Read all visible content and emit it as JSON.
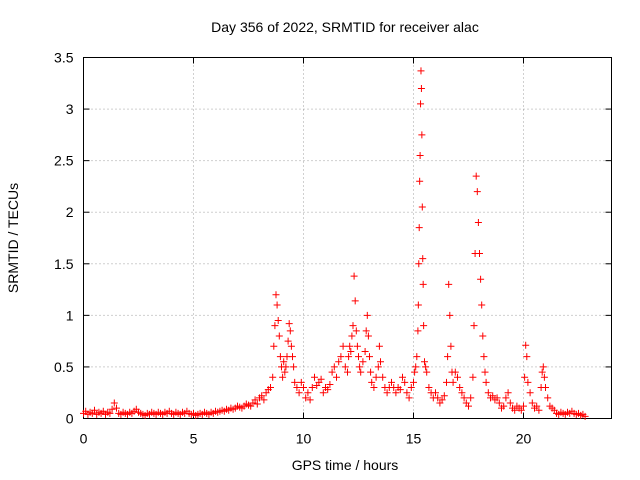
{
  "chart_data": {
    "type": "scatter",
    "title": "Day 356 of 2022, SRMTID for receiver alac",
    "xlabel": "GPS time / hours",
    "ylabel": "SRMTID / TECUs",
    "xlim": [
      0,
      24
    ],
    "ylim": [
      0,
      3.5
    ],
    "xticks": [
      0,
      5,
      10,
      15,
      20
    ],
    "xtick_labels": [
      "0",
      "5",
      "10",
      "15",
      "20"
    ],
    "yticks": [
      0,
      0.5,
      1,
      1.5,
      2,
      2.5,
      3,
      3.5
    ],
    "ytick_labels": [
      "0",
      "0.5",
      "1",
      "1.5",
      "2",
      "2.5",
      "3",
      "3.5"
    ],
    "grid": true,
    "marker": "+",
    "color": "#ff0000",
    "series": [
      {
        "name": "SRMTID",
        "points": [
          [
            0.0,
            0.05
          ],
          [
            0.1,
            0.07
          ],
          [
            0.2,
            0.04
          ],
          [
            0.3,
            0.06
          ],
          [
            0.4,
            0.05
          ],
          [
            0.5,
            0.08
          ],
          [
            0.6,
            0.04
          ],
          [
            0.7,
            0.06
          ],
          [
            0.8,
            0.05
          ],
          [
            0.9,
            0.07
          ],
          [
            1.0,
            0.04
          ],
          [
            1.1,
            0.06
          ],
          [
            1.2,
            0.05
          ],
          [
            1.3,
            0.09
          ],
          [
            1.4,
            0.15
          ],
          [
            1.5,
            0.1
          ],
          [
            1.6,
            0.05
          ],
          [
            1.7,
            0.04
          ],
          [
            1.8,
            0.06
          ],
          [
            1.9,
            0.05
          ],
          [
            2.0,
            0.04
          ],
          [
            2.1,
            0.06
          ],
          [
            2.2,
            0.05
          ],
          [
            2.3,
            0.07
          ],
          [
            2.4,
            0.09
          ],
          [
            2.5,
            0.06
          ],
          [
            2.6,
            0.05
          ],
          [
            2.7,
            0.04
          ],
          [
            2.8,
            0.03
          ],
          [
            2.9,
            0.05
          ],
          [
            3.0,
            0.04
          ],
          [
            3.1,
            0.06
          ],
          [
            3.2,
            0.05
          ],
          [
            3.3,
            0.04
          ],
          [
            3.4,
            0.06
          ],
          [
            3.5,
            0.05
          ],
          [
            3.6,
            0.04
          ],
          [
            3.7,
            0.06
          ],
          [
            3.8,
            0.05
          ],
          [
            3.9,
            0.07
          ],
          [
            4.0,
            0.05
          ],
          [
            4.1,
            0.04
          ],
          [
            4.2,
            0.06
          ],
          [
            4.3,
            0.05
          ],
          [
            4.4,
            0.04
          ],
          [
            4.5,
            0.06
          ],
          [
            4.6,
            0.05
          ],
          [
            4.7,
            0.07
          ],
          [
            4.8,
            0.05
          ],
          [
            4.9,
            0.04
          ],
          [
            5.0,
            0.05
          ],
          [
            5.1,
            0.03
          ],
          [
            5.2,
            0.04
          ],
          [
            5.3,
            0.05
          ],
          [
            5.4,
            0.04
          ],
          [
            5.5,
            0.06
          ],
          [
            5.6,
            0.05
          ],
          [
            5.7,
            0.04
          ],
          [
            5.8,
            0.06
          ],
          [
            5.9,
            0.05
          ],
          [
            6.0,
            0.07
          ],
          [
            6.1,
            0.06
          ],
          [
            6.2,
            0.07
          ],
          [
            6.3,
            0.08
          ],
          [
            6.4,
            0.07
          ],
          [
            6.5,
            0.09
          ],
          [
            6.6,
            0.08
          ],
          [
            6.7,
            0.1
          ],
          [
            6.8,
            0.09
          ],
          [
            6.9,
            0.1
          ],
          [
            7.0,
            0.12
          ],
          [
            7.1,
            0.11
          ],
          [
            7.2,
            0.1
          ],
          [
            7.3,
            0.12
          ],
          [
            7.4,
            0.14
          ],
          [
            7.5,
            0.13
          ],
          [
            7.6,
            0.12
          ],
          [
            7.7,
            0.15
          ],
          [
            7.8,
            0.18
          ],
          [
            7.9,
            0.14
          ],
          [
            8.0,
            0.2
          ],
          [
            8.1,
            0.22
          ],
          [
            8.2,
            0.18
          ],
          [
            8.3,
            0.25
          ],
          [
            8.4,
            0.28
          ],
          [
            8.5,
            0.3
          ],
          [
            8.6,
            0.4
          ],
          [
            8.65,
            0.7
          ],
          [
            8.7,
            0.9
          ],
          [
            8.75,
            1.2
          ],
          [
            8.8,
            1.1
          ],
          [
            8.85,
            0.95
          ],
          [
            8.9,
            0.8
          ],
          [
            8.95,
            0.6
          ],
          [
            9.0,
            0.5
          ],
          [
            9.05,
            0.4
          ],
          [
            9.1,
            0.55
          ],
          [
            9.15,
            0.45
          ],
          [
            9.2,
            0.5
          ],
          [
            9.25,
            0.6
          ],
          [
            9.3,
            0.75
          ],
          [
            9.35,
            0.92
          ],
          [
            9.4,
            0.85
          ],
          [
            9.45,
            0.7
          ],
          [
            9.5,
            0.6
          ],
          [
            9.55,
            0.5
          ],
          [
            9.6,
            0.35
          ],
          [
            9.7,
            0.3
          ],
          [
            9.8,
            0.25
          ],
          [
            9.9,
            0.35
          ],
          [
            10.0,
            0.3
          ],
          [
            10.1,
            0.2
          ],
          [
            10.2,
            0.25
          ],
          [
            10.3,
            0.18
          ],
          [
            10.4,
            0.3
          ],
          [
            10.5,
            0.4
          ],
          [
            10.6,
            0.32
          ],
          [
            10.7,
            0.35
          ],
          [
            10.8,
            0.38
          ],
          [
            10.9,
            0.25
          ],
          [
            11.0,
            0.3
          ],
          [
            11.1,
            0.28
          ],
          [
            11.2,
            0.33
          ],
          [
            11.3,
            0.45
          ],
          [
            11.4,
            0.5
          ],
          [
            11.5,
            0.4
          ],
          [
            11.6,
            0.55
          ],
          [
            11.7,
            0.6
          ],
          [
            11.8,
            0.7
          ],
          [
            11.9,
            0.5
          ],
          [
            12.0,
            0.45
          ],
          [
            12.05,
            0.6
          ],
          [
            12.1,
            0.7
          ],
          [
            12.15,
            0.65
          ],
          [
            12.2,
            0.8
          ],
          [
            12.25,
            0.9
          ],
          [
            12.3,
            1.38
          ],
          [
            12.35,
            1.14
          ],
          [
            12.4,
            0.85
          ],
          [
            12.45,
            0.7
          ],
          [
            12.5,
            0.6
          ],
          [
            12.55,
            0.5
          ],
          [
            12.6,
            0.45
          ],
          [
            12.7,
            0.55
          ],
          [
            12.8,
            0.65
          ],
          [
            12.85,
            0.85
          ],
          [
            12.9,
            1.0
          ],
          [
            12.95,
            0.8
          ],
          [
            13.0,
            0.6
          ],
          [
            13.05,
            0.45
          ],
          [
            13.1,
            0.35
          ],
          [
            13.2,
            0.3
          ],
          [
            13.3,
            0.4
          ],
          [
            13.4,
            0.5
          ],
          [
            13.45,
            0.7
          ],
          [
            13.5,
            0.55
          ],
          [
            13.6,
            0.4
          ],
          [
            13.7,
            0.3
          ],
          [
            13.8,
            0.25
          ],
          [
            13.9,
            0.3
          ],
          [
            14.0,
            0.35
          ],
          [
            14.1,
            0.3
          ],
          [
            14.2,
            0.25
          ],
          [
            14.3,
            0.3
          ],
          [
            14.4,
            0.28
          ],
          [
            14.5,
            0.4
          ],
          [
            14.6,
            0.35
          ],
          [
            14.7,
            0.25
          ],
          [
            14.8,
            0.2
          ],
          [
            14.9,
            0.3
          ],
          [
            15.0,
            0.35
          ],
          [
            15.05,
            0.45
          ],
          [
            15.1,
            0.5
          ],
          [
            15.15,
            0.6
          ],
          [
            15.2,
            0.85
          ],
          [
            15.22,
            1.1
          ],
          [
            15.24,
            1.5
          ],
          [
            15.26,
            1.85
          ],
          [
            15.28,
            2.3
          ],
          [
            15.3,
            2.55
          ],
          [
            15.32,
            3.05
          ],
          [
            15.34,
            3.37
          ],
          [
            15.36,
            3.2
          ],
          [
            15.38,
            2.75
          ],
          [
            15.4,
            2.05
          ],
          [
            15.42,
            1.55
          ],
          [
            15.44,
            1.3
          ],
          [
            15.46,
            0.9
          ],
          [
            15.5,
            0.55
          ],
          [
            15.55,
            0.5
          ],
          [
            15.6,
            0.45
          ],
          [
            15.7,
            0.3
          ],
          [
            15.8,
            0.25
          ],
          [
            15.9,
            0.2
          ],
          [
            16.0,
            0.25
          ],
          [
            16.1,
            0.2
          ],
          [
            16.2,
            0.15
          ],
          [
            16.3,
            0.18
          ],
          [
            16.4,
            0.22
          ],
          [
            16.5,
            0.35
          ],
          [
            16.55,
            0.6
          ],
          [
            16.6,
            1.3
          ],
          [
            16.65,
            1.0
          ],
          [
            16.7,
            0.7
          ],
          [
            16.75,
            0.45
          ],
          [
            16.8,
            0.35
          ],
          [
            16.9,
            0.45
          ],
          [
            17.0,
            0.4
          ],
          [
            17.1,
            0.3
          ],
          [
            17.2,
            0.25
          ],
          [
            17.3,
            0.2
          ],
          [
            17.4,
            0.15
          ],
          [
            17.5,
            0.12
          ],
          [
            17.6,
            0.2
          ],
          [
            17.7,
            0.4
          ],
          [
            17.75,
            0.9
          ],
          [
            17.8,
            1.6
          ],
          [
            17.85,
            2.35
          ],
          [
            17.9,
            2.2
          ],
          [
            17.95,
            1.9
          ],
          [
            18.0,
            1.6
          ],
          [
            18.05,
            1.35
          ],
          [
            18.1,
            1.1
          ],
          [
            18.15,
            0.8
          ],
          [
            18.2,
            0.6
          ],
          [
            18.25,
            0.45
          ],
          [
            18.3,
            0.35
          ],
          [
            18.4,
            0.25
          ],
          [
            18.5,
            0.2
          ],
          [
            18.6,
            0.22
          ],
          [
            18.7,
            0.18
          ],
          [
            18.8,
            0.2
          ],
          [
            18.9,
            0.15
          ],
          [
            19.0,
            0.1
          ],
          [
            19.1,
            0.12
          ],
          [
            19.2,
            0.2
          ],
          [
            19.3,
            0.25
          ],
          [
            19.4,
            0.15
          ],
          [
            19.5,
            0.1
          ],
          [
            19.6,
            0.08
          ],
          [
            19.7,
            0.12
          ],
          [
            19.8,
            0.1
          ],
          [
            19.9,
            0.08
          ],
          [
            20.0,
            0.12
          ],
          [
            20.05,
            0.4
          ],
          [
            20.1,
            0.71
          ],
          [
            20.15,
            0.6
          ],
          [
            20.2,
            0.35
          ],
          [
            20.3,
            0.25
          ],
          [
            20.4,
            0.15
          ],
          [
            20.5,
            0.1
          ],
          [
            20.6,
            0.12
          ],
          [
            20.7,
            0.08
          ],
          [
            20.8,
            0.3
          ],
          [
            20.85,
            0.45
          ],
          [
            20.9,
            0.5
          ],
          [
            20.95,
            0.4
          ],
          [
            21.0,
            0.3
          ],
          [
            21.1,
            0.2
          ],
          [
            21.2,
            0.12
          ],
          [
            21.3,
            0.1
          ],
          [
            21.4,
            0.08
          ],
          [
            21.5,
            0.05
          ],
          [
            21.6,
            0.04
          ],
          [
            21.7,
            0.06
          ],
          [
            21.8,
            0.05
          ],
          [
            21.9,
            0.04
          ],
          [
            22.0,
            0.06
          ],
          [
            22.1,
            0.05
          ],
          [
            22.2,
            0.07
          ],
          [
            22.3,
            0.05
          ],
          [
            22.4,
            0.04
          ],
          [
            22.5,
            0.05
          ],
          [
            22.6,
            0.03
          ],
          [
            22.7,
            0.04
          ],
          [
            22.8,
            0.02
          ]
        ]
      }
    ]
  }
}
